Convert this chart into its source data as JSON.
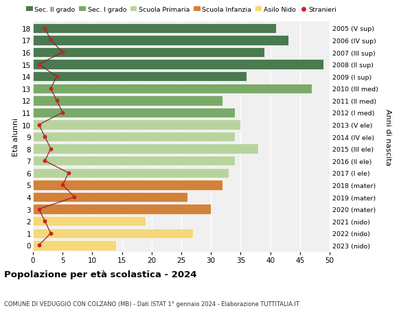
{
  "ages": [
    18,
    17,
    16,
    15,
    14,
    13,
    12,
    11,
    10,
    9,
    8,
    7,
    6,
    5,
    4,
    3,
    2,
    1,
    0
  ],
  "years": [
    "2005 (V sup)",
    "2006 (IV sup)",
    "2007 (III sup)",
    "2008 (II sup)",
    "2009 (I sup)",
    "2010 (III med)",
    "2011 (II med)",
    "2012 (I med)",
    "2013 (V ele)",
    "2014 (IV ele)",
    "2015 (III ele)",
    "2016 (II ele)",
    "2017 (I ele)",
    "2018 (mater)",
    "2019 (mater)",
    "2020 (mater)",
    "2021 (nido)",
    "2022 (nido)",
    "2023 (nido)"
  ],
  "bar_values": [
    41,
    43,
    39,
    49,
    36,
    47,
    32,
    34,
    35,
    34,
    38,
    34,
    33,
    32,
    26,
    30,
    19,
    27,
    14
  ],
  "bar_colors": [
    "#4a7a50",
    "#4a7a50",
    "#4a7a50",
    "#4a7a50",
    "#4a7a50",
    "#7aaa68",
    "#7aaa68",
    "#7aaa68",
    "#b8d49e",
    "#b8d49e",
    "#b8d49e",
    "#b8d49e",
    "#b8d49e",
    "#d4813a",
    "#d4813a",
    "#d4813a",
    "#f5d87a",
    "#f5d87a",
    "#f5d87a"
  ],
  "stranieri_values": [
    2,
    3,
    5,
    1,
    4,
    3,
    4,
    5,
    1,
    2,
    3,
    2,
    6,
    5,
    7,
    1,
    2,
    3,
    1
  ],
  "legend_labels": [
    "Sec. II grado",
    "Sec. I grado",
    "Scuola Primaria",
    "Scuola Infanzia",
    "Asilo Nido",
    "Stranieri"
  ],
  "legend_colors": [
    "#4a7a50",
    "#7aaa68",
    "#b8d49e",
    "#d4813a",
    "#f5d87a",
    "#cc2222"
  ],
  "title": "Popolazione per età scolastica - 2024",
  "subtitle": "COMUNE DI VEDUGGIO CON COLZANO (MB) - Dati ISTAT 1° gennaio 2024 - Elaborazione TUTTITALIA.IT",
  "ylabel_left": "Età alunni",
  "ylabel_right": "Anni di nascita",
  "xlim": [
    0,
    50
  ],
  "xticks": [
    0,
    5,
    10,
    15,
    20,
    25,
    30,
    35,
    40,
    45,
    50
  ],
  "bg_color": "#ffffff",
  "plot_bg": "#f0f0f0",
  "stranieri_color": "#cc2222",
  "stranieri_line_color": "#8b1a1a",
  "grid_color": "#ffffff"
}
